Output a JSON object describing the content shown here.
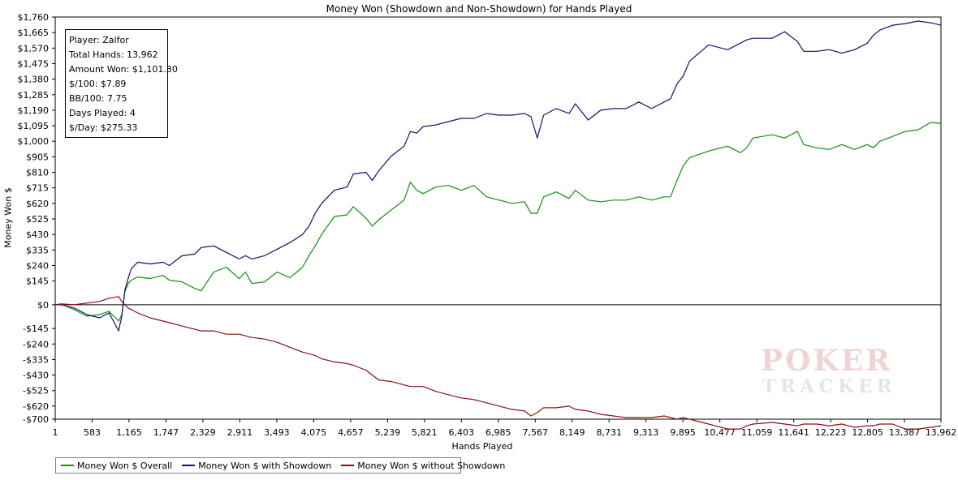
{
  "colors": {
    "overall": "#109010",
    "with_showdown": "#10106e",
    "without_showdown": "#8c1010",
    "axis": "#000000",
    "grid": "#000000"
  },
  "info_box": {
    "player": "Player: Zalfor",
    "total_hands": "Total Hands: 13,962",
    "amount_won": "Amount Won: $1,101.30",
    "per_100": "$/100: $7.89",
    "bb_per_100": "BB/100: 7.75",
    "days_played": "Days Played: 4",
    "per_day": "$/Day: $275.33"
  },
  "legend": {
    "overall": "Money Won $ Overall",
    "with_showdown": "Money Won $ with Showdown",
    "without_showdown": "Money Won $ without Showdown"
  },
  "watermark": {
    "line1": "POKER",
    "line2": "TRACKER",
    "mark": "3"
  },
  "chart_data": {
    "type": "line",
    "title": "Money Won (Showdown and Non-Showdown) for Hands Played",
    "xlabel": "Hands Played",
    "ylabel": "Money Won $",
    "xlim": [
      1,
      13962
    ],
    "ylim": [
      -700,
      1760
    ],
    "x_ticks": [
      1,
      583,
      1165,
      1747,
      2329,
      2911,
      3493,
      4075,
      4657,
      5239,
      5821,
      6403,
      6985,
      7567,
      8149,
      8731,
      9313,
      9895,
      10477,
      11059,
      11641,
      12223,
      12805,
      13387,
      13962
    ],
    "x_tick_labels": [
      "1",
      "583",
      "1,165",
      "1,747",
      "2,329",
      "2,911",
      "3,493",
      "4,075",
      "4,657",
      "5,239",
      "5,821",
      "6,403",
      "6,985",
      "7,567",
      "8,149",
      "8,731",
      "9,313",
      "9,895",
      "10,477",
      "11,059",
      "11,641",
      "12,223",
      "12,805",
      "13,387",
      "13,962"
    ],
    "y_ticks": [
      1760,
      1665,
      1570,
      1475,
      1380,
      1285,
      1190,
      1095,
      1000,
      905,
      810,
      715,
      620,
      525,
      430,
      335,
      240,
      145,
      0,
      -145,
      -240,
      -335,
      -430,
      -525,
      -620,
      -700
    ],
    "y_tick_labels": [
      "$1,760",
      "$1,665",
      "$1,570",
      "$1,475",
      "$1,380",
      "$1,285",
      "$1,190",
      "$1,095",
      "$1,000",
      "$905",
      "$810",
      "$715",
      "$620",
      "$525",
      "$430",
      "$335",
      "$240",
      "$145",
      "$0",
      "-$145",
      "-$240",
      "-$335",
      "-$430",
      "-$525",
      "-$620",
      "-$700"
    ],
    "legend_position": "bottom-left",
    "series": [
      {
        "name": "Money Won $ Overall",
        "key": "overall",
        "x": [
          1,
          100,
          300,
          500,
          700,
          850,
          1000,
          1050,
          1100,
          1150,
          1200,
          1300,
          1500,
          1700,
          1800,
          2000,
          2200,
          2300,
          2500,
          2700,
          2900,
          3000,
          3100,
          3300,
          3500,
          3700,
          3900,
          4000,
          4100,
          4200,
          4400,
          4600,
          4700,
          4900,
          5000,
          5100,
          5300,
          5500,
          5600,
          5700,
          5800,
          6000,
          6200,
          6400,
          6600,
          6800,
          7000,
          7200,
          7400,
          7500,
          7600,
          7700,
          7900,
          8100,
          8200,
          8400,
          8600,
          8800,
          9000,
          9200,
          9400,
          9600,
          9700,
          9800,
          9900,
          10000,
          10300,
          10600,
          10800,
          10900,
          11000,
          11300,
          11500,
          11700,
          11800,
          12000,
          12200,
          12400,
          12600,
          12800,
          12900,
          13000,
          13200,
          13400,
          13600,
          13800,
          13962
        ],
        "y": [
          0,
          5,
          -30,
          -70,
          -60,
          -40,
          -100,
          -60,
          80,
          130,
          150,
          170,
          160,
          180,
          150,
          140,
          100,
          85,
          200,
          230,
          160,
          200,
          130,
          140,
          200,
          165,
          230,
          300,
          360,
          430,
          540,
          550,
          600,
          530,
          480,
          520,
          580,
          640,
          750,
          700,
          680,
          720,
          730,
          700,
          730,
          660,
          640,
          620,
          630,
          560,
          560,
          660,
          690,
          650,
          700,
          640,
          630,
          640,
          640,
          660,
          640,
          660,
          660,
          760,
          850,
          900,
          940,
          970,
          930,
          960,
          1020,
          1040,
          1020,
          1060,
          980,
          960,
          950,
          980,
          950,
          980,
          960,
          1000,
          1030,
          1060,
          1070,
          1115,
          1110
        ]
      },
      {
        "name": "Money Won $ with Showdown",
        "key": "with_showdown",
        "x": [
          1,
          100,
          300,
          500,
          700,
          850,
          1000,
          1050,
          1100,
          1150,
          1200,
          1300,
          1500,
          1700,
          1800,
          2000,
          2200,
          2300,
          2500,
          2700,
          2900,
          3000,
          3100,
          3300,
          3500,
          3700,
          3900,
          4000,
          4100,
          4200,
          4400,
          4600,
          4700,
          4900,
          5000,
          5100,
          5300,
          5500,
          5600,
          5700,
          5800,
          6000,
          6200,
          6400,
          6600,
          6800,
          7000,
          7200,
          7400,
          7500,
          7600,
          7700,
          7900,
          8100,
          8200,
          8400,
          8600,
          8800,
          9000,
          9200,
          9400,
          9600,
          9700,
          9800,
          9900,
          10000,
          10300,
          10600,
          10800,
          10900,
          11000,
          11300,
          11500,
          11700,
          11800,
          12000,
          12200,
          12400,
          12600,
          12800,
          12900,
          13000,
          13200,
          13400,
          13600,
          13800,
          13962
        ],
        "y": [
          0,
          0,
          -20,
          -60,
          -80,
          -50,
          -160,
          -70,
          90,
          160,
          220,
          260,
          250,
          260,
          240,
          300,
          310,
          350,
          360,
          320,
          280,
          300,
          280,
          300,
          340,
          380,
          430,
          480,
          560,
          620,
          700,
          720,
          800,
          810,
          760,
          820,
          910,
          970,
          1060,
          1050,
          1090,
          1100,
          1120,
          1140,
          1140,
          1170,
          1160,
          1160,
          1170,
          1150,
          1020,
          1160,
          1200,
          1170,
          1230,
          1130,
          1190,
          1200,
          1200,
          1240,
          1200,
          1240,
          1260,
          1350,
          1400,
          1490,
          1590,
          1560,
          1600,
          1620,
          1630,
          1630,
          1670,
          1610,
          1550,
          1550,
          1560,
          1540,
          1560,
          1600,
          1650,
          1680,
          1710,
          1720,
          1735,
          1725,
          1710
        ]
      },
      {
        "name": "Money Won $ without Showdown",
        "key": "without_showdown",
        "x": [
          1,
          100,
          300,
          500,
          700,
          850,
          1000,
          1050,
          1100,
          1150,
          1200,
          1300,
          1500,
          1700,
          1800,
          2000,
          2200,
          2300,
          2500,
          2700,
          2900,
          3000,
          3100,
          3300,
          3500,
          3700,
          3900,
          4000,
          4100,
          4200,
          4400,
          4600,
          4700,
          4900,
          5000,
          5100,
          5300,
          5500,
          5600,
          5700,
          5800,
          6000,
          6200,
          6400,
          6600,
          6800,
          7000,
          7200,
          7400,
          7500,
          7600,
          7700,
          7900,
          8100,
          8200,
          8400,
          8600,
          8800,
          9000,
          9200,
          9400,
          9600,
          9700,
          9800,
          9900,
          10000,
          10300,
          10600,
          10800,
          10900,
          11000,
          11300,
          11500,
          11700,
          11800,
          12000,
          12200,
          12400,
          12600,
          12800,
          12900,
          13000,
          13200,
          13400,
          13600,
          13800,
          13962
        ],
        "y": [
          0,
          5,
          0,
          10,
          20,
          40,
          50,
          20,
          0,
          -20,
          -30,
          -50,
          -80,
          -100,
          -110,
          -130,
          -150,
          -160,
          -160,
          -180,
          -180,
          -190,
          -200,
          -210,
          -230,
          -260,
          -290,
          -300,
          -310,
          -330,
          -350,
          -360,
          -370,
          -400,
          -430,
          -460,
          -470,
          -490,
          -500,
          -500,
          -500,
          -530,
          -550,
          -570,
          -580,
          -600,
          -620,
          -640,
          -650,
          -680,
          -660,
          -630,
          -630,
          -620,
          -640,
          -650,
          -670,
          -680,
          -690,
          -690,
          -690,
          -680,
          -690,
          -700,
          -690,
          -700,
          -730,
          -760,
          -760,
          -740,
          -730,
          -720,
          -730,
          -740,
          -730,
          -730,
          -740,
          -730,
          -750,
          -740,
          -740,
          -730,
          -730,
          -760,
          -760,
          -750,
          -740
        ]
      }
    ]
  }
}
